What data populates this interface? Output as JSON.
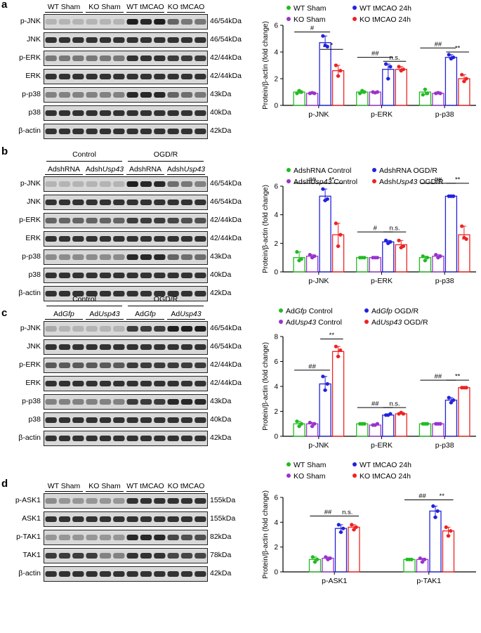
{
  "colors": {
    "green": "#22bb22",
    "purple": "#9933cc",
    "blue": "#2222dd",
    "red": "#ee2222"
  },
  "panels": [
    {
      "id": "a",
      "label": "a",
      "top": 0,
      "blot": {
        "headers": [
          {
            "text": "WT Sham"
          },
          {
            "text": "KO Sham"
          },
          {
            "text": "WT tMCAO"
          },
          {
            "text": "KO tMCAO"
          }
        ],
        "groups": [],
        "rows": [
          {
            "label": "p-JNK",
            "kda": "46/54kDa",
            "pattern": "pjnk_a"
          },
          {
            "label": "JNK",
            "kda": "46/54kDa",
            "pattern": "total"
          },
          {
            "label": "p-ERK",
            "kda": "42/44kDa",
            "pattern": "perk_a"
          },
          {
            "label": "ERK",
            "kda": "42/44kDa",
            "pattern": "total"
          },
          {
            "label": "p-p38",
            "kda": "43kDa",
            "pattern": "pp38_a"
          },
          {
            "label": "p38",
            "kda": "40kDa",
            "pattern": "total"
          },
          {
            "label": "β-actin",
            "kda": "42kDa",
            "pattern": "total"
          }
        ]
      },
      "legend": [
        {
          "text": "WT Sham",
          "color": "green"
        },
        {
          "text": "WT tMCAO 24h",
          "color": "blue"
        },
        {
          "text": "KO Sham",
          "color": "purple"
        },
        {
          "text": "KO tMCAO 24h",
          "color": "red"
        }
      ],
      "chart_data": {
        "type": "bar",
        "ylabel": "Protein/β-actin (fold change)",
        "ylim": [
          0,
          6
        ],
        "yticks": [
          0,
          2,
          4,
          6
        ],
        "categories": [
          "p-JNK",
          "p-ERK",
          "p-p38"
        ],
        "series": [
          {
            "name": "WT Sham",
            "color": "green",
            "values": [
              1.0,
              1.0,
              1.0
            ],
            "points": [
              [
                0.9,
                1.1,
                1.0
              ],
              [
                0.9,
                1.1,
                1.0
              ],
              [
                0.8,
                1.2,
                0.9
              ]
            ]
          },
          {
            "name": "KO Sham",
            "color": "purple",
            "values": [
              0.9,
              1.0,
              0.9
            ],
            "points": [
              [
                0.9,
                0.95,
                0.9
              ],
              [
                1.0,
                0.95,
                1.0
              ],
              [
                0.9,
                0.95,
                0.9
              ]
            ]
          },
          {
            "name": "WT tMCAO 24h",
            "color": "blue",
            "values": [
              4.7,
              2.7,
              3.6
            ],
            "points": [
              [
                5.2,
                4.5,
                4.4
              ],
              [
                3.1,
                2.0,
                2.9
              ],
              [
                3.8,
                3.5,
                3.6
              ]
            ]
          },
          {
            "name": "KO tMCAO 24h",
            "color": "red",
            "values": [
              2.6,
              2.7,
              2.0
            ],
            "points": [
              [
                3.0,
                2.2,
                2.6
              ],
              [
                2.9,
                2.6,
                2.7
              ],
              [
                2.3,
                1.8,
                2.0
              ]
            ]
          }
        ],
        "annotations": [
          {
            "category": 0,
            "from": 0,
            "to": 2,
            "y": 5.5,
            "text": "#"
          },
          {
            "category": 0,
            "from": 2,
            "to": 3,
            "y": 4.2,
            "text": "*"
          },
          {
            "category": 1,
            "from": 0,
            "to": 2,
            "y": 3.6,
            "text": "##"
          },
          {
            "category": 1,
            "from": 2,
            "to": 3,
            "y": 3.3,
            "text": "n.s."
          },
          {
            "category": 2,
            "from": 0,
            "to": 2,
            "y": 4.3,
            "text": "##"
          },
          {
            "category": 2,
            "from": 2,
            "to": 3,
            "y": 4.0,
            "text": "**"
          }
        ]
      }
    },
    {
      "id": "b",
      "label": "b",
      "top": 207,
      "blot": {
        "headers": [
          {
            "text": "AdshRNA"
          },
          {
            "pre": "Adsh",
            "it": "Usp43"
          },
          {
            "text": "AdshRNA"
          },
          {
            "pre": "Adsh",
            "it": "Usp43"
          }
        ],
        "groups": [
          {
            "text": "Control"
          },
          {
            "text": "OGD/R"
          }
        ],
        "rows": [
          {
            "label": "p-JNK",
            "kda": "46/54kDa",
            "pattern": "pjnk_b"
          },
          {
            "label": "JNK",
            "kda": "46/54kDa",
            "pattern": "total"
          },
          {
            "label": "p-ERK",
            "kda": "42/44kDa",
            "pattern": "perk_b"
          },
          {
            "label": "ERK",
            "kda": "42/44kDa",
            "pattern": "total"
          },
          {
            "label": "p-p38",
            "kda": "43kDa",
            "pattern": "pp38_b"
          },
          {
            "label": "p38",
            "kda": "40kDa",
            "pattern": "total"
          },
          {
            "label": "β-actin",
            "kda": "42kDa",
            "pattern": "total"
          }
        ]
      },
      "legend": [
        {
          "text": "AdshRNA Control",
          "color": "green"
        },
        {
          "text": "AdshRNA OGD/R",
          "color": "blue"
        },
        {
          "pre": "Adsh",
          "it": "Usp43",
          "post": " Control",
          "color": "purple"
        },
        {
          "pre": "Adsh",
          "it": "Usp43",
          "post": " OGD/R",
          "color": "red"
        }
      ],
      "chart_data": {
        "type": "bar",
        "ylabel": "Protein/β-actin (fold change)",
        "ylim": [
          0,
          6
        ],
        "yticks": [
          0,
          2,
          4,
          6
        ],
        "categories": [
          "p-JNK",
          "p-ERK",
          "p-p38"
        ],
        "series": [
          {
            "name": "AdshRNA Control",
            "color": "green",
            "values": [
              1.0,
              1.0,
              1.0
            ],
            "points": [
              [
                1.4,
                0.8,
                0.9
              ],
              [
                1.0,
                1.0,
                1.0
              ],
              [
                1.1,
                0.8,
                1.0
              ]
            ]
          },
          {
            "name": "AdshUsp43 Control",
            "color": "purple",
            "values": [
              1.1,
              1.0,
              1.1
            ],
            "points": [
              [
                1.2,
                1.0,
                1.1
              ],
              [
                1.0,
                1.0,
                1.0
              ],
              [
                1.2,
                1.0,
                1.1
              ]
            ]
          },
          {
            "name": "AdshRNA OGD/R",
            "color": "blue",
            "values": [
              5.3,
              2.1,
              5.3
            ],
            "points": [
              [
                5.8,
                5.0,
                5.1
              ],
              [
                2.2,
                2.0,
                2.1
              ],
              [
                5.3,
                5.3,
                5.3
              ]
            ]
          },
          {
            "name": "AdshUsp43 OGD/R",
            "color": "red",
            "values": [
              2.6,
              1.9,
              2.6
            ],
            "points": [
              [
                3.4,
                1.8,
                2.6
              ],
              [
                2.2,
                1.7,
                1.8
              ],
              [
                3.2,
                2.4,
                2.3
              ]
            ]
          }
        ],
        "annotations": [
          {
            "category": 0,
            "from": 0,
            "to": 2,
            "y": 6.2,
            "text": "##"
          },
          {
            "category": 0,
            "from": 2,
            "to": 3,
            "y": 6.2,
            "text": "**"
          },
          {
            "category": 1,
            "from": 0,
            "to": 2,
            "y": 2.8,
            "text": "#"
          },
          {
            "category": 1,
            "from": 2,
            "to": 3,
            "y": 2.8,
            "text": "n.s."
          },
          {
            "category": 2,
            "from": 0,
            "to": 2,
            "y": 6.2,
            "text": "##"
          },
          {
            "category": 2,
            "from": 2,
            "to": 3,
            "y": 6.2,
            "text": "**"
          }
        ]
      }
    },
    {
      "id": "c",
      "label": "c",
      "top": 413,
      "blot": {
        "headers": [
          {
            "pre": "Ad",
            "it": "Gfp"
          },
          {
            "pre": "Ad",
            "it": "Usp43"
          },
          {
            "pre": "Ad",
            "it": "Gfp"
          },
          {
            "pre": "Ad",
            "it": "Usp43"
          }
        ],
        "groups": [
          {
            "text": "Control"
          },
          {
            "text": "OGD/R"
          }
        ],
        "rows": [
          {
            "label": "p-JNK",
            "kda": "46/54kDa",
            "pattern": "pjnk_c"
          },
          {
            "label": "JNK",
            "kda": "46/54kDa",
            "pattern": "total"
          },
          {
            "label": "p-ERK",
            "kda": "42/44kDa",
            "pattern": "perk_c"
          },
          {
            "label": "ERK",
            "kda": "42/44kDa",
            "pattern": "total"
          },
          {
            "label": "p-p38",
            "kda": "43kDa",
            "pattern": "pp38_c"
          },
          {
            "label": "p38",
            "kda": "40kDa",
            "pattern": "total"
          },
          {
            "label": "β-actin",
            "kda": "42kDa",
            "pattern": "total"
          }
        ]
      },
      "legend": [
        {
          "pre": "Ad",
          "it": "Gfp",
          "post": " Control",
          "color": "green"
        },
        {
          "pre": "Ad",
          "it": "Gfp",
          "post": " OGD/R",
          "color": "blue"
        },
        {
          "pre": "Ad",
          "it": "Usp43",
          "post": " Control",
          "color": "purple"
        },
        {
          "pre": "Ad",
          "it": "Usp43",
          "post": " OGD/R",
          "color": "red"
        }
      ],
      "chart_data": {
        "type": "bar",
        "ylabel": "Protein/β-actin (fold change)",
        "ylim": [
          0,
          8
        ],
        "yticks": [
          0,
          2,
          4,
          6,
          8
        ],
        "categories": [
          "p-JNK",
          "p-ERK",
          "p-p38"
        ],
        "series": [
          {
            "name": "AdGfp Control",
            "color": "green",
            "values": [
              1.0,
              1.0,
              1.0
            ],
            "points": [
              [
                1.2,
                0.8,
                1.0
              ],
              [
                1.0,
                1.0,
                1.0
              ],
              [
                1.0,
                1.0,
                1.0
              ]
            ]
          },
          {
            "name": "AdUsp43 Control",
            "color": "purple",
            "values": [
              1.0,
              0.9,
              1.0
            ],
            "points": [
              [
                1.1,
                0.8,
                1.0
              ],
              [
                0.9,
                0.9,
                1.0
              ],
              [
                1.0,
                1.0,
                1.0
              ]
            ]
          },
          {
            "name": "AdGfp OGD/R",
            "color": "blue",
            "values": [
              4.2,
              1.7,
              2.9
            ],
            "points": [
              [
                4.8,
                3.7,
                4.2
              ],
              [
                1.7,
                1.7,
                1.8
              ],
              [
                3.1,
                2.7,
                2.9
              ]
            ]
          },
          {
            "name": "AdUsp43 OGD/R",
            "color": "red",
            "values": [
              6.8,
              1.8,
              3.9
            ],
            "points": [
              [
                7.2,
                6.4,
                6.9
              ],
              [
                1.8,
                1.9,
                1.8
              ],
              [
                3.9,
                3.9,
                3.9
              ]
            ]
          }
        ],
        "annotations": [
          {
            "category": 0,
            "from": 0,
            "to": 2,
            "y": 5.3,
            "text": "##"
          },
          {
            "category": 0,
            "from": 2,
            "to": 3,
            "y": 7.8,
            "text": "**"
          },
          {
            "category": 1,
            "from": 0,
            "to": 2,
            "y": 2.3,
            "text": "##"
          },
          {
            "category": 1,
            "from": 2,
            "to": 3,
            "y": 2.3,
            "text": "n.s."
          },
          {
            "category": 2,
            "from": 0,
            "to": 2,
            "y": 4.5,
            "text": "##"
          },
          {
            "category": 2,
            "from": 2,
            "to": 3,
            "y": 4.5,
            "text": "**"
          }
        ]
      }
    },
    {
      "id": "d",
      "label": "d",
      "top": 656,
      "blot": {
        "headers": [
          {
            "text": "WT Sham"
          },
          {
            "text": "KO Sham"
          },
          {
            "text": "WT tMCAO"
          },
          {
            "text": "KO tMCAO"
          }
        ],
        "groups": [],
        "rows": [
          {
            "label": "p-ASK1",
            "kda": "155kDa",
            "pattern": "pask_d"
          },
          {
            "label": "ASK1",
            "kda": "155kDa",
            "pattern": "total"
          },
          {
            "label": "p-TAK1",
            "kda": "82kDa",
            "pattern": "ptak_d"
          },
          {
            "label": "TAK1",
            "kda": "78kDa",
            "pattern": "tak_d"
          },
          {
            "label": "β-actin",
            "kda": "42kDa",
            "pattern": "total"
          }
        ]
      },
      "legend": [
        {
          "text": "WT Sham",
          "color": "green"
        },
        {
          "text": "WT tMCAO 24h",
          "color": "blue"
        },
        {
          "text": "KO Sham",
          "color": "purple"
        },
        {
          "text": "KO tMCAO 24h",
          "color": "red"
        }
      ],
      "chart_data": {
        "type": "bar",
        "ylabel": "Protein/β-actin (fold change)",
        "ylim": [
          0,
          6
        ],
        "yticks": [
          0,
          2,
          4,
          6
        ],
        "categories": [
          "p-ASK1",
          "p-TAK1"
        ],
        "series": [
          {
            "name": "WT Sham",
            "color": "green",
            "values": [
              1.0,
              1.0
            ],
            "points": [
              [
                1.2,
                0.8,
                1.0
              ],
              [
                1.0,
                1.0,
                1.0
              ]
            ]
          },
          {
            "name": "KO Sham",
            "color": "purple",
            "values": [
              1.1,
              1.0
            ],
            "points": [
              [
                1.2,
                1.0,
                1.1
              ],
              [
                1.1,
                0.8,
                1.0
              ]
            ]
          },
          {
            "name": "WT tMCAO 24h",
            "color": "blue",
            "values": [
              3.5,
              4.9
            ],
            "points": [
              [
                3.8,
                3.2,
                3.5
              ],
              [
                5.3,
                4.4,
                4.9
              ]
            ]
          },
          {
            "name": "KO tMCAO 24h",
            "color": "red",
            "values": [
              3.6,
              3.3
            ],
            "points": [
              [
                3.8,
                3.4,
                3.6
              ],
              [
                3.6,
                2.9,
                3.3
              ]
            ]
          }
        ],
        "annotations": [
          {
            "category": 0,
            "from": 0,
            "to": 2,
            "y": 4.5,
            "text": "##"
          },
          {
            "category": 0,
            "from": 2,
            "to": 3,
            "y": 4.5,
            "text": "n.s."
          },
          {
            "category": 1,
            "from": 0,
            "to": 2,
            "y": 5.8,
            "text": "##"
          },
          {
            "category": 1,
            "from": 2,
            "to": 3,
            "y": 5.8,
            "text": "**"
          }
        ]
      }
    }
  ]
}
